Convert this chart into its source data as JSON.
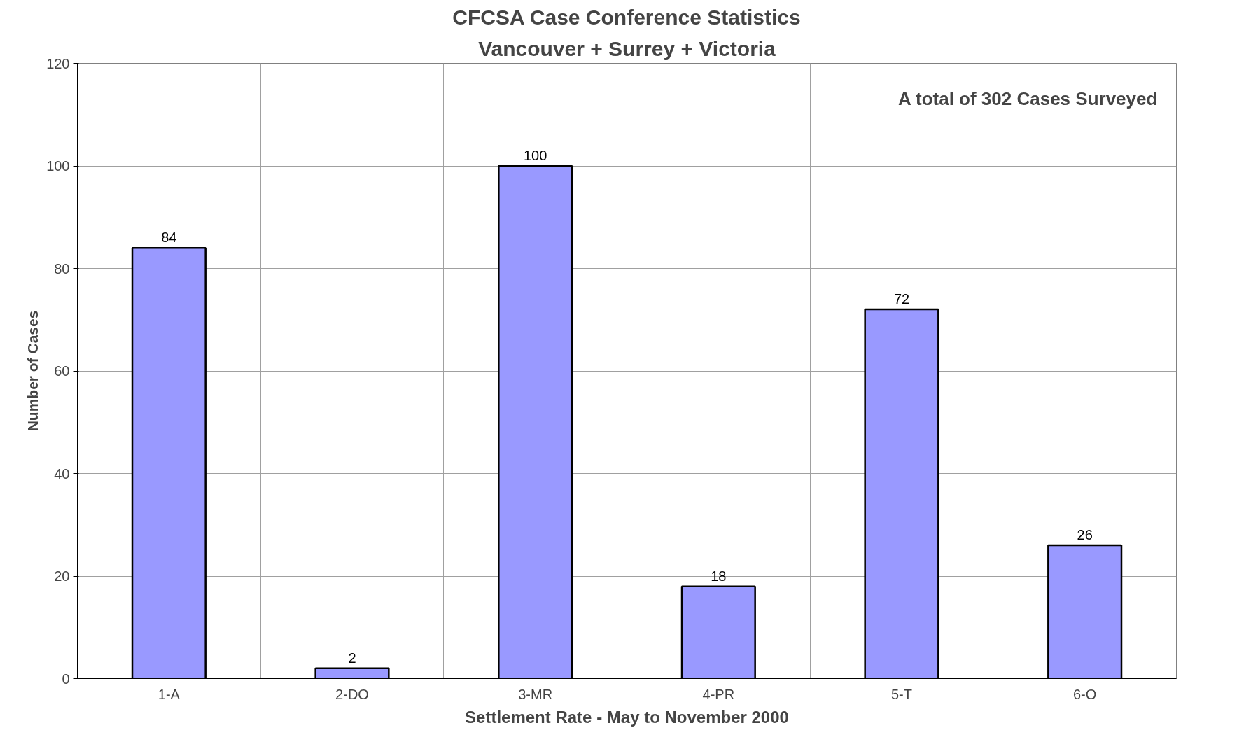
{
  "chart_data": {
    "type": "bar",
    "title": "CFCSA Case Conference Statistics",
    "subtitle": "Vancouver + Surrey + Victoria",
    "xlabel": "Settlement Rate - May to November 2000",
    "ylabel": "Number of Cases",
    "categories": [
      "1-A",
      "2-DO",
      "3-MR",
      "4-PR",
      "5-T",
      "6-O"
    ],
    "values": [
      84,
      2,
      100,
      18,
      72,
      26
    ],
    "color": "#9999ff",
    "ylim": [
      0,
      120
    ],
    "yticks": [
      0,
      20,
      40,
      60,
      80,
      100,
      120
    ],
    "grid": true,
    "data_labels": true,
    "annotations": [
      "A total of 302 Cases Surveyed"
    ]
  }
}
